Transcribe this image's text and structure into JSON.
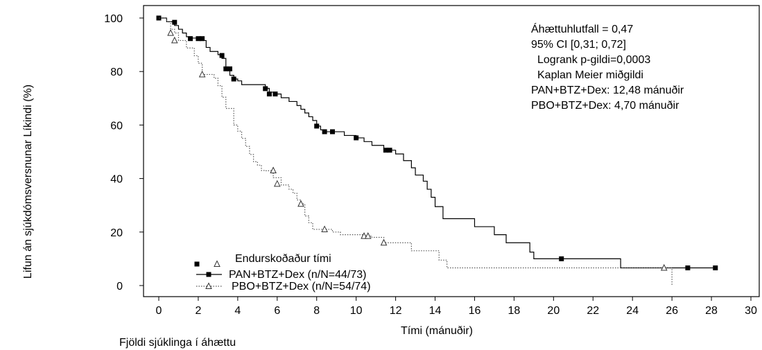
{
  "chart_data": {
    "type": "line",
    "title": "",
    "xlabel": "Tími (mánuðir)",
    "ylabel": "Lifun án sjúkdómsversnunar Líkindi (%)",
    "below_axis_label": "Fjöldi sjúklinga í áhættu",
    "xlim": [
      0,
      30
    ],
    "ylim": [
      0,
      100
    ],
    "x_ticks": [
      "0",
      "2",
      "4",
      "6",
      "8",
      "10",
      "12",
      "14",
      "16",
      "18",
      "20",
      "22",
      "24",
      "26",
      "28",
      "30"
    ],
    "y_ticks": [
      "0",
      "20",
      "40",
      "60",
      "80",
      "100"
    ],
    "grid": false,
    "legend_placement": "bottom-left",
    "legend_title": "Endurskoðaður tími",
    "annotations": [
      "Áhættuhlutfall = 0,47",
      "95% CI [0,31; 0,72]",
      "Logrank p-gildi=0,0003",
      "Kaplan Meier miðgildi",
      "PAN+BTZ+Dex: 12,48 mánuðir",
      "PBO+BTZ+Dex: 4,70 mánuðir"
    ],
    "series": [
      {
        "name": "PAN+BTZ+Dex (n/N=44/73)",
        "style": "solid",
        "marker": "filled-square",
        "color": "#000000",
        "steps": [
          [
            0,
            100
          ],
          [
            0.4,
            98.6
          ],
          [
            0.8,
            97.2
          ],
          [
            1.0,
            95.8
          ],
          [
            1.2,
            94.4
          ],
          [
            1.4,
            93.0
          ],
          [
            1.6,
            92.5
          ],
          [
            2.2,
            91.6
          ],
          [
            2.4,
            89.0
          ],
          [
            2.6,
            87.5
          ],
          [
            3.0,
            86.3
          ],
          [
            3.2,
            84.9
          ],
          [
            3.4,
            81.0
          ],
          [
            3.6,
            78.6
          ],
          [
            3.8,
            77.2
          ],
          [
            4.0,
            76.5
          ],
          [
            4.2,
            75.1
          ],
          [
            5.4,
            73.7
          ],
          [
            5.6,
            72.3
          ],
          [
            6.0,
            71.6
          ],
          [
            6.2,
            70.2
          ],
          [
            6.6,
            68.8
          ],
          [
            7.0,
            67.3
          ],
          [
            7.2,
            65.9
          ],
          [
            7.4,
            64.5
          ],
          [
            7.6,
            63.1
          ],
          [
            7.8,
            61.7
          ],
          [
            8.0,
            59.6
          ],
          [
            8.2,
            58.2
          ],
          [
            8.4,
            57.5
          ],
          [
            9.4,
            56.1
          ],
          [
            10.0,
            55.2
          ],
          [
            10.4,
            53.8
          ],
          [
            10.8,
            52.4
          ],
          [
            11.4,
            51.0
          ],
          [
            11.6,
            50.6
          ],
          [
            12.0,
            49.2
          ],
          [
            12.4,
            46.7
          ],
          [
            12.8,
            44.0
          ],
          [
            13.0,
            41.3
          ],
          [
            13.4,
            39.0
          ],
          [
            13.6,
            36.0
          ],
          [
            13.8,
            33.0
          ],
          [
            14.0,
            29.5
          ],
          [
            14.4,
            25.0
          ],
          [
            16.0,
            22.0
          ],
          [
            17.0,
            19.0
          ],
          [
            17.6,
            16.0
          ],
          [
            18.8,
            12.5
          ],
          [
            19.0,
            10.0
          ],
          [
            23.4,
            6.6
          ],
          [
            28.2,
            6.6
          ]
        ],
        "censored": [
          [
            0,
            100
          ],
          [
            0.8,
            98.4
          ],
          [
            1.6,
            92.3
          ],
          [
            2.0,
            92.3
          ],
          [
            2.2,
            92.3
          ],
          [
            3.2,
            86.0
          ],
          [
            3.4,
            81.0
          ],
          [
            3.6,
            81.0
          ],
          [
            3.8,
            77.2
          ],
          [
            5.4,
            73.6
          ],
          [
            5.6,
            71.6
          ],
          [
            5.9,
            71.6
          ],
          [
            8.0,
            59.6
          ],
          [
            8.4,
            57.5
          ],
          [
            8.8,
            57.5
          ],
          [
            10.0,
            55.2
          ],
          [
            11.5,
            50.6
          ],
          [
            11.7,
            50.6
          ],
          [
            20.4,
            10.0
          ],
          [
            26.8,
            6.6
          ],
          [
            28.2,
            6.6
          ]
        ]
      },
      {
        "name": "PBO+BTZ+Dex (n/N=54/74)",
        "style": "dotted",
        "marker": "open-triangle",
        "color": "#555555",
        "steps": [
          [
            0,
            100
          ],
          [
            0.4,
            98.6
          ],
          [
            0.6,
            95.8
          ],
          [
            0.8,
            94.4
          ],
          [
            1.0,
            91.6
          ],
          [
            1.4,
            88.8
          ],
          [
            1.8,
            85.9
          ],
          [
            2.0,
            83.1
          ],
          [
            2.2,
            78.9
          ],
          [
            2.8,
            77.5
          ],
          [
            3.0,
            74.7
          ],
          [
            3.2,
            70.4
          ],
          [
            3.4,
            66.2
          ],
          [
            3.8,
            60.0
          ],
          [
            4.0,
            57.7
          ],
          [
            4.2,
            55.0
          ],
          [
            4.4,
            52.0
          ],
          [
            4.6,
            49.0
          ],
          [
            4.8,
            46.3
          ],
          [
            5.0,
            45.0
          ],
          [
            5.2,
            43.0
          ],
          [
            5.4,
            42.9
          ],
          [
            5.8,
            40.3
          ],
          [
            6.2,
            37.6
          ],
          [
            6.6,
            36.0
          ],
          [
            6.8,
            34.5
          ],
          [
            7.0,
            32.0
          ],
          [
            7.2,
            30.5
          ],
          [
            7.4,
            26.0
          ],
          [
            7.6,
            23.5
          ],
          [
            7.8,
            21.0
          ],
          [
            8.8,
            20.0
          ],
          [
            9.2,
            19.0
          ],
          [
            10.4,
            18.5
          ],
          [
            10.8,
            18.0
          ],
          [
            11.4,
            16.0
          ],
          [
            12.8,
            13.0
          ],
          [
            14.2,
            9.5
          ],
          [
            14.6,
            6.6
          ],
          [
            26.0,
            0
          ]
        ],
        "censored": [
          [
            0.6,
            94.4
          ],
          [
            0.8,
            91.6
          ],
          [
            2.2,
            78.9
          ],
          [
            5.8,
            43.0
          ],
          [
            6.0,
            38.0
          ],
          [
            7.2,
            30.5
          ],
          [
            8.4,
            21.0
          ],
          [
            10.4,
            18.5
          ],
          [
            10.6,
            18.5
          ],
          [
            11.4,
            16.0
          ],
          [
            25.6,
            6.6
          ]
        ]
      }
    ]
  }
}
